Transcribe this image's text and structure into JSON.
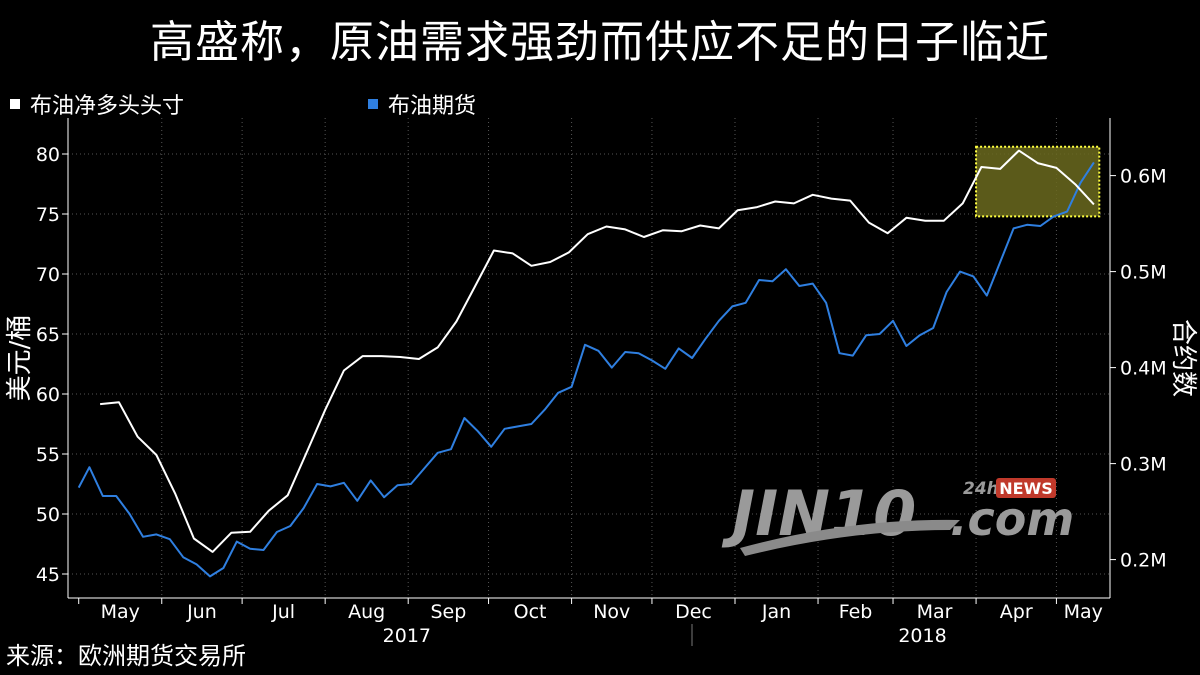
{
  "title": "高盛称，原油需求强劲而供应不足的日子临近",
  "source": "来源：欧洲期货交易所",
  "watermark": {
    "brand": "JIN10",
    "suffix": ".com",
    "badge_24h": "24h",
    "badge_news": "NEWS"
  },
  "colors": {
    "background": "#000000",
    "brent_futures": "#2f7fe0",
    "net_long": "#ffffff",
    "highlight_fill": "#6b6a1e",
    "highlight_border": "#ffff40"
  },
  "chart_data": {
    "type": "line",
    "title": "高盛称，原油需求强劲而供应不足的日子临近",
    "x_ticks": [
      "May",
      "Jun",
      "Jul",
      "Aug",
      "Sep",
      "Oct",
      "Nov",
      "Dec",
      "Jan",
      "Feb",
      "Mar",
      "Apr",
      "May"
    ],
    "years": [
      "2017",
      "2018"
    ],
    "y_left": {
      "label": "美元/桶",
      "ticks": [
        "45",
        "50",
        "55",
        "60",
        "65",
        "70",
        "75",
        "80"
      ],
      "range": [
        43,
        83
      ]
    },
    "y_right": {
      "label": "合约数",
      "ticks": [
        "0.2M",
        "0.3M",
        "0.4M",
        "0.5M",
        "0.6M"
      ],
      "range": [
        0.16,
        0.66
      ]
    },
    "grid": true,
    "legend_position": "top-left",
    "series": [
      {
        "name": "布油净多头头寸",
        "axis": "right",
        "color": "#ffffff",
        "x": [
          "2017-05-09",
          "2017-05-16",
          "2017-05-23",
          "2017-05-30",
          "2017-06-06",
          "2017-06-13",
          "2017-06-20",
          "2017-06-27",
          "2017-07-04",
          "2017-07-11",
          "2017-07-18",
          "2017-07-25",
          "2017-08-01",
          "2017-08-08",
          "2017-08-15",
          "2017-08-22",
          "2017-08-29",
          "2017-09-05",
          "2017-09-12",
          "2017-09-19",
          "2017-09-26",
          "2017-10-03",
          "2017-10-10",
          "2017-10-17",
          "2017-10-24",
          "2017-10-31",
          "2017-11-07",
          "2017-11-14",
          "2017-11-21",
          "2017-11-28",
          "2017-12-05",
          "2017-12-12",
          "2017-12-19",
          "2017-12-26",
          "2018-01-02",
          "2018-01-09",
          "2018-01-16",
          "2018-01-23",
          "2018-01-30",
          "2018-02-06",
          "2018-02-13",
          "2018-02-20",
          "2018-02-27",
          "2018-03-06",
          "2018-03-13",
          "2018-03-20",
          "2018-03-27",
          "2018-04-03",
          "2018-04-10",
          "2018-04-17",
          "2018-04-24",
          "2018-05-01",
          "2018-05-08",
          "2018-05-15"
        ],
        "values": [
          0.362,
          0.364,
          0.328,
          0.309,
          0.269,
          0.222,
          0.208,
          0.228,
          0.229,
          0.251,
          0.267,
          0.311,
          0.356,
          0.397,
          0.412,
          0.412,
          0.411,
          0.409,
          0.421,
          0.448,
          0.485,
          0.522,
          0.519,
          0.506,
          0.51,
          0.52,
          0.539,
          0.547,
          0.544,
          0.536,
          0.543,
          0.542,
          0.548,
          0.545,
          0.564,
          0.567,
          0.573,
          0.571,
          0.58,
          0.576,
          0.574,
          0.551,
          0.54,
          0.556,
          0.553,
          0.553,
          0.571,
          0.609,
          0.607,
          0.626,
          0.613,
          0.608,
          0.591,
          0.57
        ]
      },
      {
        "name": "布油期货",
        "axis": "left",
        "color": "#2f7fe0",
        "x": [
          "2017-05-01",
          "2017-05-05",
          "2017-05-10",
          "2017-05-15",
          "2017-05-20",
          "2017-05-25",
          "2017-05-30",
          "2017-06-04",
          "2017-06-09",
          "2017-06-14",
          "2017-06-19",
          "2017-06-24",
          "2017-06-29",
          "2017-07-04",
          "2017-07-09",
          "2017-07-14",
          "2017-07-19",
          "2017-07-24",
          "2017-07-29",
          "2017-08-03",
          "2017-08-08",
          "2017-08-13",
          "2017-08-18",
          "2017-08-23",
          "2017-08-28",
          "2017-09-02",
          "2017-09-07",
          "2017-09-12",
          "2017-09-17",
          "2017-09-22",
          "2017-09-27",
          "2017-10-02",
          "2017-10-07",
          "2017-10-12",
          "2017-10-17",
          "2017-10-22",
          "2017-10-27",
          "2017-11-01",
          "2017-11-06",
          "2017-11-11",
          "2017-11-16",
          "2017-11-21",
          "2017-11-26",
          "2017-12-01",
          "2017-12-06",
          "2017-12-11",
          "2017-12-16",
          "2017-12-21",
          "2017-12-26",
          "2017-12-31",
          "2018-01-05",
          "2018-01-10",
          "2018-01-15",
          "2018-01-20",
          "2018-01-25",
          "2018-01-30",
          "2018-02-04",
          "2018-02-09",
          "2018-02-14",
          "2018-02-19",
          "2018-02-24",
          "2018-03-01",
          "2018-03-06",
          "2018-03-11",
          "2018-03-16",
          "2018-03-21",
          "2018-03-26",
          "2018-03-31",
          "2018-04-05",
          "2018-04-10",
          "2018-04-15",
          "2018-04-20",
          "2018-04-25",
          "2018-04-30",
          "2018-05-05",
          "2018-05-10",
          "2018-05-15"
        ],
        "values": [
          52.2,
          53.9,
          51.5,
          51.5,
          50.0,
          48.1,
          48.3,
          47.9,
          46.4,
          45.8,
          44.8,
          45.5,
          47.7,
          47.1,
          47.0,
          48.5,
          49.0,
          50.5,
          52.5,
          52.3,
          52.6,
          51.1,
          52.8,
          51.4,
          52.4,
          52.5,
          53.8,
          55.1,
          55.4,
          58.0,
          56.9,
          55.6,
          57.1,
          57.3,
          57.5,
          58.7,
          60.1,
          60.6,
          64.1,
          63.6,
          62.2,
          63.5,
          63.4,
          62.8,
          62.1,
          63.8,
          63.0,
          64.6,
          66.1,
          67.3,
          67.6,
          69.5,
          69.4,
          70.4,
          69.0,
          69.2,
          67.6,
          63.4,
          63.2,
          64.9,
          65.0,
          66.1,
          64.0,
          64.9,
          65.5,
          68.5,
          70.2,
          69.8,
          68.2,
          71.0,
          73.8,
          74.1,
          74.0,
          74.8,
          75.2,
          77.6,
          79.3
        ]
      }
    ],
    "annotations": [
      {
        "type": "highlight_box",
        "x_range": [
          "2018-04-01",
          "2018-05-17"
        ],
        "y_range": [
          74.8,
          80.6
        ],
        "axis": "left"
      }
    ]
  }
}
